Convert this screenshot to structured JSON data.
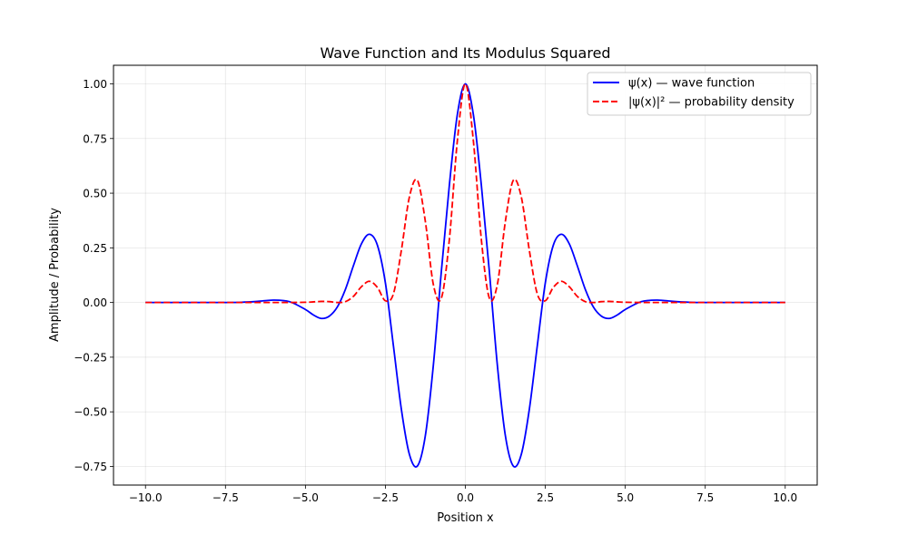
{
  "chart_data": {
    "type": "line",
    "title": "Wave Function and Its Modulus Squared",
    "xlabel": "Position x",
    "ylabel": "Amplitude / Probability",
    "xlim": [
      -11.0,
      11.0
    ],
    "ylim": [
      -0.835,
      1.085
    ],
    "xticks": [
      -10,
      -7.5,
      -5,
      -2.5,
      0,
      2.5,
      5,
      7.5,
      10
    ],
    "xtick_labels": [
      "−10.0",
      "−7.5",
      "−5.0",
      "−2.5",
      "0.0",
      "2.5",
      "5.0",
      "7.5",
      "10.0"
    ],
    "yticks": [
      -0.75,
      -0.5,
      -0.25,
      0,
      0.25,
      0.5,
      0.75,
      1.0
    ],
    "ytick_labels": [
      "−0.75",
      "−0.50",
      "−0.25",
      "0.00",
      "0.25",
      "0.50",
      "0.75",
      "1.00"
    ],
    "grid": true,
    "legend_position": "top-right",
    "series": [
      {
        "name": "ψ(x) — wave function",
        "color": "#0000ff",
        "style": "solid",
        "x": [
          -10,
          -9,
          -8,
          -7.5,
          -7,
          -6.5,
          -6,
          -5.5,
          -5,
          -4.75,
          -4.5,
          -4.25,
          -4,
          -3.75,
          -3.5,
          -3.25,
          -3,
          -2.75,
          -2.5,
          -2.25,
          -2,
          -1.75,
          -1.5,
          -1.25,
          -1,
          -0.75,
          -0.5,
          -0.25,
          0,
          0.25,
          0.5,
          0.75,
          1,
          1.25,
          1.5,
          1.75,
          2,
          2.25,
          2.5,
          2.75,
          3,
          3.25,
          3.5,
          3.75,
          4,
          4.25,
          4.5,
          4.75,
          5,
          5.5,
          6,
          6.5,
          7,
          7.5,
          8,
          9,
          10
        ],
        "y": [
          0,
          0,
          0,
          0,
          0.001,
          0.005,
          0.011,
          0.004,
          -0.032,
          -0.057,
          -0.073,
          -0.062,
          -0.02,
          0.06,
          0.168,
          0.268,
          0.312,
          0.262,
          0.09,
          -0.197,
          -0.489,
          -0.694,
          -0.748,
          -0.608,
          -0.286,
          0.143,
          0.537,
          0.86,
          1.0,
          0.86,
          0.537,
          0.143,
          -0.286,
          -0.608,
          -0.748,
          -0.694,
          -0.489,
          -0.197,
          0.09,
          0.262,
          0.312,
          0.268,
          0.168,
          0.06,
          -0.02,
          -0.062,
          -0.073,
          -0.057,
          -0.032,
          0.004,
          0.011,
          0.005,
          0.001,
          0,
          0,
          0,
          0
        ]
      },
      {
        "name": "|ψ(x)|² — probability density",
        "color": "#ff0000",
        "style": "dashed",
        "x": [
          -10,
          -9,
          -8,
          -7.5,
          -7,
          -6.5,
          -6,
          -5.5,
          -5,
          -4.75,
          -4.5,
          -4.25,
          -4,
          -3.75,
          -3.5,
          -3.25,
          -3,
          -2.75,
          -2.5,
          -2.25,
          -2,
          -1.75,
          -1.5,
          -1.25,
          -1,
          -0.75,
          -0.5,
          -0.25,
          0,
          0.25,
          0.5,
          0.75,
          1,
          1.25,
          1.5,
          1.75,
          2,
          2.25,
          2.5,
          2.75,
          3,
          3.25,
          3.5,
          3.75,
          4,
          4.25,
          4.5,
          4.75,
          5,
          5.5,
          6,
          6.5,
          7,
          7.5,
          8,
          9,
          10
        ],
        "y": [
          0,
          0,
          0,
          0,
          0,
          0,
          0,
          0,
          0.001,
          0.003,
          0.005,
          0.004,
          0,
          0.004,
          0.028,
          0.072,
          0.097,
          0.069,
          0.008,
          0.039,
          0.239,
          0.482,
          0.559,
          0.37,
          0.082,
          0.02,
          0.288,
          0.74,
          1.0,
          0.74,
          0.288,
          0.02,
          0.082,
          0.37,
          0.559,
          0.482,
          0.239,
          0.039,
          0.008,
          0.069,
          0.097,
          0.072,
          0.028,
          0.004,
          0,
          0.004,
          0.005,
          0.003,
          0.001,
          0,
          0,
          0,
          0,
          0,
          0,
          0,
          0
        ]
      }
    ]
  }
}
